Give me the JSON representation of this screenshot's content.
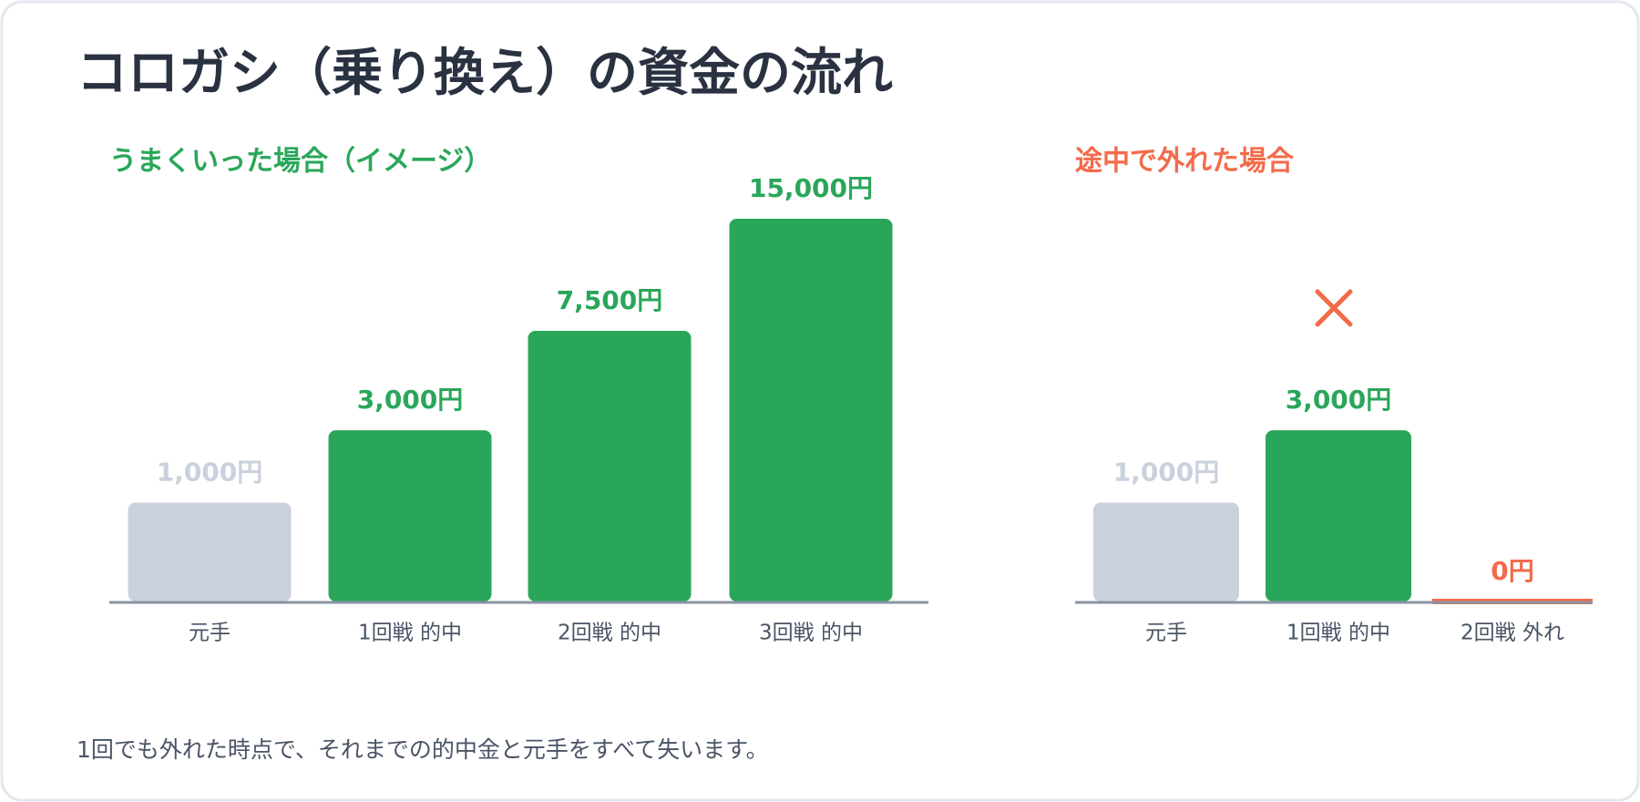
{
  "title": "コロガシ（乗り換え）の資金の流れ",
  "chart_data": [
    {
      "type": "bar",
      "title": "うまくいった場合（イメージ）",
      "title_color": "#2aa65a",
      "categories": [
        "元手",
        "1回戦 的中",
        "2回戦 的中",
        "3回戦 的中"
      ],
      "values": [
        1000,
        3000,
        7500,
        15000
      ],
      "value_labels": [
        "1,000円",
        "3,000円",
        "7,500円",
        "15,000円"
      ],
      "colors": [
        "#c9d1dd",
        "#2aa65a",
        "#2aa65a",
        "#2aa65a"
      ]
    },
    {
      "type": "bar",
      "title": "途中で外れた場合",
      "title_color": "#f26b4b",
      "categories": [
        "元手",
        "1回戦 的中",
        "2回戦 外れ"
      ],
      "values": [
        1000,
        3000,
        0
      ],
      "value_labels": [
        "1,000円",
        "3,000円",
        "0円"
      ],
      "colors": [
        "#c9d1dd",
        "#2aa65a",
        "#f26b4b"
      ]
    }
  ],
  "footer": "1回でも外れた時点で、それまでの的中金と元手をすべて失います。"
}
